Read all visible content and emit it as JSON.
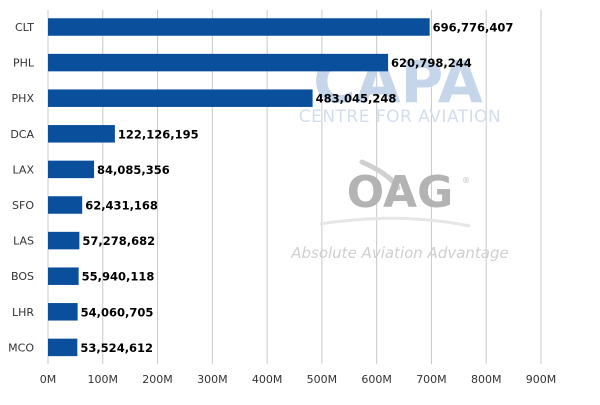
{
  "chart_data": {
    "type": "bar",
    "orientation": "horizontal",
    "categories": [
      "CLT",
      "PHL",
      "PHX",
      "DCA",
      "LAX",
      "SFO",
      "LAS",
      "BOS",
      "LHR",
      "MCO"
    ],
    "values": [
      696776407,
      620798244,
      483045248,
      122126195,
      84085356,
      62431168,
      57278682,
      55940118,
      54060705,
      53524612
    ],
    "value_labels": [
      "696,776,407",
      "620,798,244",
      "483,045,248",
      "122,126,195",
      "84,085,356",
      "62,431,168",
      "57,278,682",
      "55,940,118",
      "54,060,705",
      "53,524,612"
    ],
    "x_ticks": [
      0,
      100000000,
      200000000,
      300000000,
      400000000,
      500000000,
      600000000,
      700000000,
      800000000,
      900000000
    ],
    "x_tick_labels": [
      "0M",
      "100M",
      "200M",
      "300M",
      "400M",
      "500M",
      "600M",
      "700M",
      "800M",
      "900M"
    ],
    "xlim": [
      0,
      900000000
    ],
    "grid": "vertical",
    "bar_color": "#0a4f9c",
    "title": "",
    "xlabel": "",
    "ylabel": ""
  },
  "watermarks": {
    "capa_logo": "CAPA",
    "capa_subtitle": "CENTRE FOR AVIATION",
    "oag_logo": "OAG",
    "oag_tagline": "Absolute Aviation Advantage"
  }
}
